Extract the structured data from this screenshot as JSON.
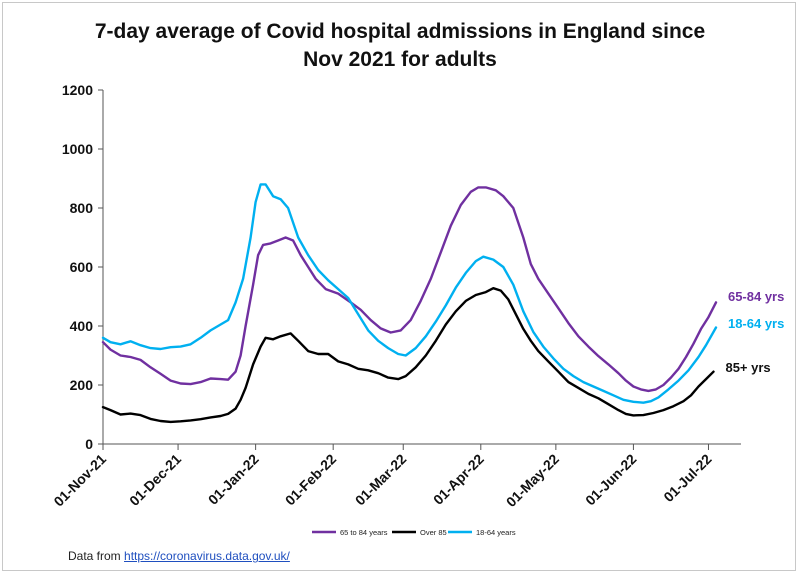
{
  "chart_data": {
    "type": "line",
    "title_lines": [
      "7-day average of Covid hospital admissions in England since",
      "Nov 2021 for adults"
    ],
    "xlabel": "",
    "ylabel": "",
    "ylim": [
      0,
      1200
    ],
    "yticks": [
      0,
      200,
      400,
      600,
      800,
      1000,
      1200
    ],
    "xlim": [
      "2021-11-01",
      "2022-07-14"
    ],
    "xticks": [
      "2021-11-01",
      "2021-12-01",
      "2022-01-01",
      "2022-02-01",
      "2022-03-01",
      "2022-04-01",
      "2022-05-01",
      "2022-06-01",
      "2022-07-01"
    ],
    "xtick_labels": [
      "01-Nov-21",
      "01-Dec-21",
      "01-Jan-22",
      "01-Feb-22",
      "01-Mar-22",
      "01-Apr-22",
      "01-May-22",
      "01-Jun-22",
      "01-Jul-22"
    ],
    "grid": false,
    "legend_position": "bottom",
    "series": [
      {
        "name": "65 to 84 years",
        "end_label": "65-84 yrs",
        "color": "#7030a0",
        "points": [
          [
            "2021-11-01",
            345
          ],
          [
            "2021-11-04",
            320
          ],
          [
            "2021-11-08",
            300
          ],
          [
            "2021-11-12",
            295
          ],
          [
            "2021-11-16",
            285
          ],
          [
            "2021-11-20",
            260
          ],
          [
            "2021-11-24",
            238
          ],
          [
            "2021-11-28",
            215
          ],
          [
            "2021-12-02",
            205
          ],
          [
            "2021-12-06",
            203
          ],
          [
            "2021-12-10",
            210
          ],
          [
            "2021-12-14",
            222
          ],
          [
            "2021-12-18",
            220
          ],
          [
            "2021-12-21",
            218
          ],
          [
            "2021-12-24",
            245
          ],
          [
            "2021-12-26",
            300
          ],
          [
            "2021-12-28",
            400
          ],
          [
            "2021-12-31",
            540
          ],
          [
            "2022-01-02",
            640
          ],
          [
            "2022-01-04",
            675
          ],
          [
            "2022-01-07",
            680
          ],
          [
            "2022-01-10",
            690
          ],
          [
            "2022-01-13",
            700
          ],
          [
            "2022-01-16",
            690
          ],
          [
            "2022-01-19",
            640
          ],
          [
            "2022-01-22",
            600
          ],
          [
            "2022-01-25",
            560
          ],
          [
            "2022-01-29",
            525
          ],
          [
            "2022-02-03",
            510
          ],
          [
            "2022-02-08",
            480
          ],
          [
            "2022-02-12",
            455
          ],
          [
            "2022-02-16",
            420
          ],
          [
            "2022-02-20",
            392
          ],
          [
            "2022-02-24",
            378
          ],
          [
            "2022-02-28",
            385
          ],
          [
            "2022-03-04",
            420
          ],
          [
            "2022-03-08",
            485
          ],
          [
            "2022-03-12",
            560
          ],
          [
            "2022-03-16",
            650
          ],
          [
            "2022-03-20",
            740
          ],
          [
            "2022-03-24",
            810
          ],
          [
            "2022-03-28",
            855
          ],
          [
            "2022-03-31",
            870
          ],
          [
            "2022-04-03",
            870
          ],
          [
            "2022-04-07",
            860
          ],
          [
            "2022-04-10",
            840
          ],
          [
            "2022-04-14",
            800
          ],
          [
            "2022-04-18",
            700
          ],
          [
            "2022-04-21",
            610
          ],
          [
            "2022-04-24",
            560
          ],
          [
            "2022-04-28",
            510
          ],
          [
            "2022-05-02",
            460
          ],
          [
            "2022-05-06",
            410
          ],
          [
            "2022-05-10",
            365
          ],
          [
            "2022-05-14",
            330
          ],
          [
            "2022-05-18",
            298
          ],
          [
            "2022-05-22",
            270
          ],
          [
            "2022-05-26",
            240
          ],
          [
            "2022-05-29",
            215
          ],
          [
            "2022-06-01",
            195
          ],
          [
            "2022-06-04",
            185
          ],
          [
            "2022-06-07",
            180
          ],
          [
            "2022-06-10",
            185
          ],
          [
            "2022-06-13",
            200
          ],
          [
            "2022-06-16",
            225
          ],
          [
            "2022-06-19",
            255
          ],
          [
            "2022-06-22",
            295
          ],
          [
            "2022-06-25",
            340
          ],
          [
            "2022-06-28",
            390
          ],
          [
            "2022-07-01",
            430
          ],
          [
            "2022-07-04",
            480
          ]
        ]
      },
      {
        "name": "Over 85",
        "end_label": "85+ yrs",
        "color": "#000000",
        "points": [
          [
            "2021-11-01",
            125
          ],
          [
            "2021-11-04",
            115
          ],
          [
            "2021-11-08",
            100
          ],
          [
            "2021-11-12",
            103
          ],
          [
            "2021-11-16",
            98
          ],
          [
            "2021-11-20",
            85
          ],
          [
            "2021-11-24",
            78
          ],
          [
            "2021-11-28",
            75
          ],
          [
            "2021-12-02",
            77
          ],
          [
            "2021-12-06",
            80
          ],
          [
            "2021-12-10",
            84
          ],
          [
            "2021-12-14",
            90
          ],
          [
            "2021-12-18",
            95
          ],
          [
            "2021-12-21",
            102
          ],
          [
            "2021-12-24",
            120
          ],
          [
            "2021-12-26",
            150
          ],
          [
            "2021-12-28",
            190
          ],
          [
            "2021-12-31",
            270
          ],
          [
            "2022-01-03",
            330
          ],
          [
            "2022-01-05",
            360
          ],
          [
            "2022-01-08",
            355
          ],
          [
            "2022-01-11",
            365
          ],
          [
            "2022-01-15",
            375
          ],
          [
            "2022-01-18",
            350
          ],
          [
            "2022-01-22",
            315
          ],
          [
            "2022-01-26",
            305
          ],
          [
            "2022-01-30",
            305
          ],
          [
            "2022-02-03",
            280
          ],
          [
            "2022-02-07",
            270
          ],
          [
            "2022-02-11",
            255
          ],
          [
            "2022-02-15",
            250
          ],
          [
            "2022-02-19",
            240
          ],
          [
            "2022-02-23",
            225
          ],
          [
            "2022-02-27",
            220
          ],
          [
            "2022-03-02",
            230
          ],
          [
            "2022-03-06",
            260
          ],
          [
            "2022-03-10",
            300
          ],
          [
            "2022-03-14",
            350
          ],
          [
            "2022-03-18",
            405
          ],
          [
            "2022-03-22",
            450
          ],
          [
            "2022-03-26",
            485
          ],
          [
            "2022-03-30",
            505
          ],
          [
            "2022-04-03",
            515
          ],
          [
            "2022-04-06",
            528
          ],
          [
            "2022-04-09",
            520
          ],
          [
            "2022-04-12",
            490
          ],
          [
            "2022-04-15",
            440
          ],
          [
            "2022-04-18",
            390
          ],
          [
            "2022-04-21",
            350
          ],
          [
            "2022-04-24",
            315
          ],
          [
            "2022-04-28",
            280
          ],
          [
            "2022-05-02",
            245
          ],
          [
            "2022-05-06",
            210
          ],
          [
            "2022-05-10",
            190
          ],
          [
            "2022-05-14",
            170
          ],
          [
            "2022-05-18",
            155
          ],
          [
            "2022-05-22",
            135
          ],
          [
            "2022-05-26",
            115
          ],
          [
            "2022-05-29",
            102
          ],
          [
            "2022-06-01",
            97
          ],
          [
            "2022-06-05",
            98
          ],
          [
            "2022-06-09",
            105
          ],
          [
            "2022-06-13",
            115
          ],
          [
            "2022-06-17",
            128
          ],
          [
            "2022-06-21",
            145
          ],
          [
            "2022-06-24",
            165
          ],
          [
            "2022-06-27",
            195
          ],
          [
            "2022-06-30",
            220
          ],
          [
            "2022-07-03",
            245
          ]
        ]
      },
      {
        "name": "18-64 years",
        "end_label": "18-64 yrs",
        "color": "#00b0f0",
        "points": [
          [
            "2021-11-01",
            360
          ],
          [
            "2021-11-04",
            345
          ],
          [
            "2021-11-08",
            338
          ],
          [
            "2021-11-12",
            348
          ],
          [
            "2021-11-16",
            335
          ],
          [
            "2021-11-20",
            325
          ],
          [
            "2021-11-24",
            322
          ],
          [
            "2021-11-28",
            328
          ],
          [
            "2021-12-02",
            330
          ],
          [
            "2021-12-06",
            338
          ],
          [
            "2021-12-10",
            360
          ],
          [
            "2021-12-14",
            385
          ],
          [
            "2021-12-18",
            405
          ],
          [
            "2021-12-21",
            420
          ],
          [
            "2021-12-24",
            480
          ],
          [
            "2021-12-27",
            560
          ],
          [
            "2021-12-30",
            700
          ],
          [
            "2022-01-01",
            820
          ],
          [
            "2022-01-03",
            880
          ],
          [
            "2022-01-05",
            880
          ],
          [
            "2022-01-08",
            840
          ],
          [
            "2022-01-11",
            830
          ],
          [
            "2022-01-14",
            800
          ],
          [
            "2022-01-18",
            700
          ],
          [
            "2022-01-22",
            640
          ],
          [
            "2022-01-26",
            590
          ],
          [
            "2022-01-30",
            555
          ],
          [
            "2022-02-03",
            525
          ],
          [
            "2022-02-07",
            495
          ],
          [
            "2022-02-11",
            440
          ],
          [
            "2022-02-15",
            385
          ],
          [
            "2022-02-19",
            350
          ],
          [
            "2022-02-23",
            325
          ],
          [
            "2022-02-27",
            305
          ],
          [
            "2022-03-02",
            300
          ],
          [
            "2022-03-06",
            325
          ],
          [
            "2022-03-10",
            365
          ],
          [
            "2022-03-14",
            415
          ],
          [
            "2022-03-18",
            470
          ],
          [
            "2022-03-22",
            530
          ],
          [
            "2022-03-26",
            580
          ],
          [
            "2022-03-30",
            620
          ],
          [
            "2022-04-02",
            635
          ],
          [
            "2022-04-06",
            625
          ],
          [
            "2022-04-10",
            600
          ],
          [
            "2022-04-14",
            540
          ],
          [
            "2022-04-18",
            450
          ],
          [
            "2022-04-22",
            380
          ],
          [
            "2022-04-26",
            330
          ],
          [
            "2022-04-30",
            290
          ],
          [
            "2022-05-04",
            255
          ],
          [
            "2022-05-08",
            230
          ],
          [
            "2022-05-12",
            210
          ],
          [
            "2022-05-16",
            195
          ],
          [
            "2022-05-20",
            180
          ],
          [
            "2022-05-24",
            165
          ],
          [
            "2022-05-28",
            150
          ],
          [
            "2022-06-01",
            143
          ],
          [
            "2022-06-05",
            140
          ],
          [
            "2022-06-08",
            145
          ],
          [
            "2022-06-11",
            158
          ],
          [
            "2022-06-15",
            185
          ],
          [
            "2022-06-19",
            215
          ],
          [
            "2022-06-23",
            250
          ],
          [
            "2022-06-27",
            295
          ],
          [
            "2022-06-30",
            335
          ],
          [
            "2022-07-04",
            395
          ]
        ]
      }
    ]
  },
  "footer": {
    "prefix": "Data from ",
    "link": "https://coronavirus.data.gov.uk/"
  }
}
